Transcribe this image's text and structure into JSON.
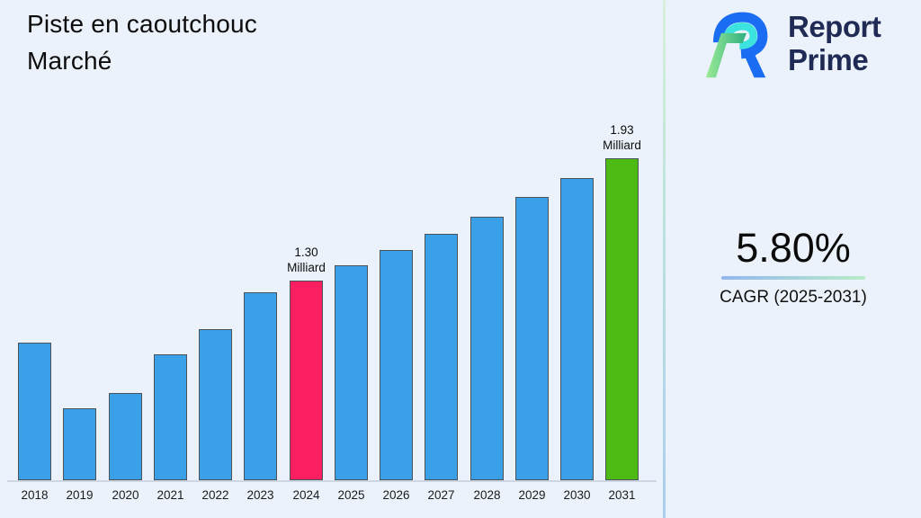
{
  "header": {
    "title_line1": "Piste en caoutchouc",
    "title_line2": "Marché"
  },
  "brand": {
    "icon": "report-prime-logo-icon",
    "name_line1": "Report",
    "name_line2": "Prime",
    "text_color": "#1F2B55"
  },
  "side_panel": {
    "cagr_value": "5.80%",
    "cagr_label": "CAGR (2025-2031)",
    "underline_gradient": [
      "#93B7F1",
      "#B6EDC6"
    ]
  },
  "chart_data": {
    "type": "bar",
    "title": "Piste en caoutchouc Marché",
    "categories": [
      "2018",
      "2019",
      "2020",
      "2021",
      "2022",
      "2023",
      "2024",
      "2025",
      "2026",
      "2027",
      "2028",
      "2029",
      "2030",
      "2031"
    ],
    "values": [
      0.98,
      0.64,
      0.72,
      0.92,
      1.05,
      1.24,
      1.3,
      1.38,
      1.46,
      1.54,
      1.63,
      1.73,
      1.83,
      1.93
    ],
    "unit": "Milliard",
    "xlabel": "",
    "ylabel": "",
    "grid": false,
    "legend": false,
    "y_axis_visible": false,
    "bar_colors": {
      "default": "#3AA0E8",
      "2024": "#F91F60",
      "2031": "#4DBB13"
    },
    "bar_edge_color": "#4A525A",
    "data_labels": [
      {
        "category": "2024",
        "value_text": "1.30",
        "unit_text": "Milliard"
      },
      {
        "category": "2031",
        "value_text": "1.93",
        "unit_text": "Milliard"
      }
    ]
  },
  "colors": {
    "background": "#ECF2FB",
    "divider_top": "#D9F0DA",
    "divider_bottom": "#A9CEEE",
    "axis_line": "#CDD7E2",
    "logo_blue": "#1A6DF2",
    "logo_cyan": "#3BE2DE",
    "logo_green_light": "#9BEB96",
    "logo_green_dark": "#2FAF80"
  }
}
